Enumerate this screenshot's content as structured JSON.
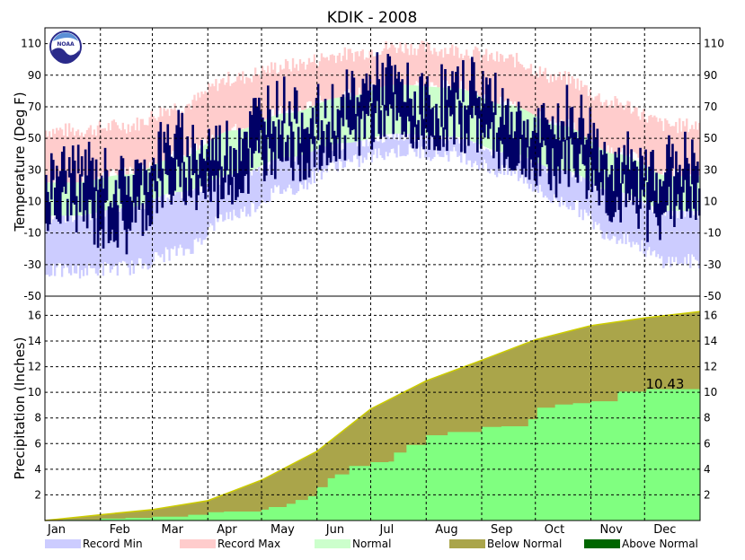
{
  "chart_data": {
    "type": "area",
    "title": "KDIK - 2008",
    "months": [
      "Jan",
      "Feb",
      "Mar",
      "Apr",
      "May",
      "Jun",
      "Jul",
      "Aug",
      "Sep",
      "Oct",
      "Nov",
      "Dec"
    ],
    "temperature": {
      "ylabel": "Temperature (Deg F)",
      "ylim": [
        -50,
        120
      ],
      "ticks": [
        110,
        90,
        70,
        50,
        30,
        10,
        -10,
        -30,
        -50
      ],
      "ticks_display": [
        "110",
        "90",
        "70",
        "50",
        "30",
        "10",
        "-10",
        "-30",
        "-50"
      ],
      "record_max_monthly": [
        55,
        58,
        70,
        88,
        96,
        103,
        108,
        106,
        100,
        88,
        72,
        58
      ],
      "record_min_monthly": [
        -34,
        -32,
        -22,
        2,
        18,
        34,
        42,
        40,
        28,
        10,
        -12,
        -28
      ],
      "normal_high_monthly": [
        22,
        27,
        38,
        55,
        66,
        76,
        84,
        82,
        71,
        58,
        40,
        26
      ],
      "normal_low_monthly": [
        1,
        6,
        16,
        27,
        38,
        47,
        53,
        51,
        41,
        30,
        16,
        4
      ]
    },
    "precipitation": {
      "ylabel": "Precipitation (Inches)",
      "ylim": [
        0,
        17.5
      ],
      "ticks": [
        16,
        14,
        12,
        10,
        8,
        6,
        4,
        2
      ],
      "ticks_display": [
        "16",
        "14",
        "12",
        "10",
        "8",
        "6",
        "4",
        "2"
      ],
      "normal_cumulative_day": [
        0,
        31,
        60,
        91,
        121,
        152,
        182,
        213,
        244,
        274,
        305,
        335,
        366
      ],
      "normal_cumulative": [
        0,
        0.45,
        0.85,
        1.55,
        3.15,
        5.4,
        8.7,
        10.9,
        12.5,
        14.1,
        15.2,
        15.8,
        16.3
      ],
      "observed_cumulative_day": [
        0,
        10,
        31,
        45,
        60,
        80,
        91,
        100,
        121,
        125,
        135,
        140,
        147,
        152,
        158,
        162,
        170,
        182,
        192,
        195,
        202,
        213,
        225,
        244,
        255,
        270,
        275,
        285,
        295,
        305,
        320,
        336,
        366
      ],
      "observed_cumulative": [
        0,
        0.05,
        0.15,
        0.2,
        0.3,
        0.45,
        0.65,
        0.7,
        0.85,
        1.05,
        1.3,
        1.6,
        1.9,
        2.6,
        3.3,
        3.6,
        4.25,
        4.55,
        4.6,
        5.3,
        5.9,
        6.65,
        6.9,
        7.3,
        7.35,
        7.9,
        8.8,
        9.05,
        9.15,
        9.3,
        10.05,
        10.25,
        10.43
      ],
      "total_label": "10.43"
    }
  },
  "legend": [
    {
      "label": "Record Min",
      "color": "#ccccff"
    },
    {
      "label": "Record Max",
      "color": "#ffcccc"
    },
    {
      "label": "Normal",
      "color": "#ccffcc"
    },
    {
      "label": "Below Normal",
      "color": "#aaa54a"
    },
    {
      "label": "Above Normal",
      "color": "#006600"
    }
  ],
  "colors": {
    "record_min": "#ccccff",
    "record_max": "#ffcccc",
    "normal": "#ccffcc",
    "observed": "#000066",
    "below_normal": "#aaa54a",
    "observed_precip": "#80ff80",
    "normal_precip_line": "#cccc00"
  },
  "logo_text": "NOAA"
}
